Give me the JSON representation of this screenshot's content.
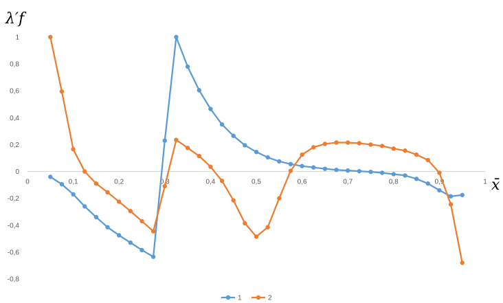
{
  "chart_data": {
    "type": "line",
    "ylabel": "λ′f",
    "xlabel": "x̄",
    "xlim": [
      0,
      1
    ],
    "ylim": [
      -0.8,
      1
    ],
    "x_ticks": [
      "0",
      "0,1",
      "0,2",
      "0,3",
      "0,4",
      "0,5",
      "0,6",
      "0,7",
      "0,8",
      "0,9",
      "1"
    ],
    "y_ticks": [
      "-0,8",
      "-0,6",
      "-0,4",
      "-0,2",
      "0",
      "0,2",
      "0,4",
      "0,6",
      "0,8",
      "1"
    ],
    "grid": false,
    "legend_position": "bottom",
    "series": [
      {
        "name": "1",
        "color": "#5B9BD5",
        "points": [
          [
            0.05,
            -0.04
          ],
          [
            0.075,
            -0.095
          ],
          [
            0.1,
            -0.17
          ],
          [
            0.125,
            -0.26
          ],
          [
            0.15,
            -0.34
          ],
          [
            0.175,
            -0.415
          ],
          [
            0.2,
            -0.475
          ],
          [
            0.225,
            -0.53
          ],
          [
            0.25,
            -0.585
          ],
          [
            0.275,
            -0.635
          ],
          [
            0.3,
            0.23
          ],
          [
            0.325,
            1.0
          ],
          [
            0.35,
            0.78
          ],
          [
            0.375,
            0.605
          ],
          [
            0.4,
            0.465
          ],
          [
            0.425,
            0.35
          ],
          [
            0.45,
            0.265
          ],
          [
            0.475,
            0.195
          ],
          [
            0.5,
            0.145
          ],
          [
            0.525,
            0.105
          ],
          [
            0.55,
            0.075
          ],
          [
            0.575,
            0.055
          ],
          [
            0.6,
            0.04
          ],
          [
            0.625,
            0.03
          ],
          [
            0.65,
            0.02
          ],
          [
            0.675,
            0.012
          ],
          [
            0.7,
            0.007
          ],
          [
            0.725,
            0.002
          ],
          [
            0.75,
            -0.003
          ],
          [
            0.775,
            -0.01
          ],
          [
            0.8,
            -0.02
          ],
          [
            0.825,
            -0.03
          ],
          [
            0.85,
            -0.055
          ],
          [
            0.875,
            -0.09
          ],
          [
            0.9,
            -0.14
          ],
          [
            0.925,
            -0.185
          ],
          [
            0.95,
            -0.175
          ]
        ]
      },
      {
        "name": "2",
        "color": "#ED7D31",
        "points": [
          [
            0.05,
            1.0
          ],
          [
            0.075,
            0.595
          ],
          [
            0.1,
            0.165
          ],
          [
            0.125,
            0.0
          ],
          [
            0.15,
            -0.09
          ],
          [
            0.175,
            -0.155
          ],
          [
            0.2,
            -0.225
          ],
          [
            0.225,
            -0.295
          ],
          [
            0.25,
            -0.37
          ],
          [
            0.275,
            -0.445
          ],
          [
            0.3,
            -0.11
          ],
          [
            0.325,
            0.235
          ],
          [
            0.35,
            0.175
          ],
          [
            0.375,
            0.115
          ],
          [
            0.4,
            0.035
          ],
          [
            0.425,
            -0.07
          ],
          [
            0.45,
            -0.215
          ],
          [
            0.475,
            -0.385
          ],
          [
            0.5,
            -0.485
          ],
          [
            0.525,
            -0.415
          ],
          [
            0.55,
            -0.2
          ],
          [
            0.575,
            0.005
          ],
          [
            0.6,
            0.125
          ],
          [
            0.625,
            0.18
          ],
          [
            0.65,
            0.205
          ],
          [
            0.675,
            0.215
          ],
          [
            0.7,
            0.215
          ],
          [
            0.725,
            0.21
          ],
          [
            0.75,
            0.2
          ],
          [
            0.775,
            0.19
          ],
          [
            0.8,
            0.17
          ],
          [
            0.825,
            0.155
          ],
          [
            0.85,
            0.125
          ],
          [
            0.875,
            0.085
          ],
          [
            0.9,
            -0.01
          ],
          [
            0.925,
            -0.245
          ],
          [
            0.95,
            -0.68
          ]
        ]
      }
    ]
  }
}
